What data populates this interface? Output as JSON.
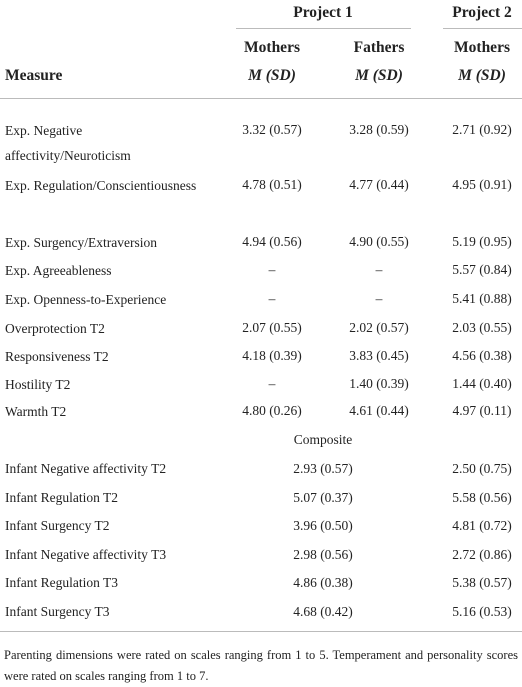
{
  "header": {
    "project1": "Project 1",
    "project2": "Project 2",
    "measure": "Measure",
    "columns": [
      {
        "group": "Mothers",
        "stat": "M (SD)"
      },
      {
        "group": "Fathers",
        "stat": "M (SD)"
      },
      {
        "group": "Mothers",
        "stat": "M (SD)"
      }
    ]
  },
  "table": {
    "rows": [
      [
        "Exp. Negative affectivity/Neuroticism",
        "3.32 (0.57)",
        "3.28 (0.59)",
        "2.71 (0.92)"
      ],
      [
        "Exp. Regulation/Conscientiousness",
        "4.78 (0.51)",
        "4.77 (0.44)",
        "4.95 (0.91)"
      ],
      [
        "Exp. Surgency/Extraversion",
        "4.94 (0.56)",
        "4.90 (0.55)",
        "5.19 (0.95)"
      ],
      [
        "Exp. Agreeableness",
        "–",
        "–",
        "5.57 (0.84)"
      ],
      [
        "Exp. Openness-to-Experience",
        "–",
        "–",
        "5.41 (0.88)"
      ],
      [
        "Overprotection T2",
        "2.07 (0.55)",
        "2.02 (0.57)",
        "2.03 (0.55)"
      ],
      [
        "Responsiveness T2",
        "4.18 (0.39)",
        "3.83 (0.45)",
        "4.56 (0.38)"
      ],
      [
        "Hostility T2",
        "–",
        "1.40 (0.39)",
        "1.44 (0.40)"
      ],
      [
        "Warmth T2",
        "4.80 (0.26)",
        "4.61 (0.44)",
        "4.97 (0.11)"
      ]
    ],
    "section": "Composite",
    "composite_rows": [
      [
        "Infant Negative affectivity T2",
        "2.93 (0.57)",
        "2.50 (0.75)"
      ],
      [
        "Infant Regulation T2",
        "5.07 (0.37)",
        "5.58 (0.56)"
      ],
      [
        "Infant Surgency T2",
        "3.96 (0.50)",
        "4.81 (0.72)"
      ],
      [
        "Infant Negative affectivity T3",
        "2.98 (0.56)",
        "2.72 (0.86)"
      ],
      [
        "Infant Regulation T3",
        "4.86 (0.38)",
        "5.38 (0.57)"
      ],
      [
        "Infant Surgency T3",
        "4.68 (0.42)",
        "5.16 (0.53)"
      ]
    ]
  },
  "footnote": "Parenting dimensions were rated on scales ranging from 1 to 5. Temperament and personality scores were rated on scales ranging from 1 to 7."
}
